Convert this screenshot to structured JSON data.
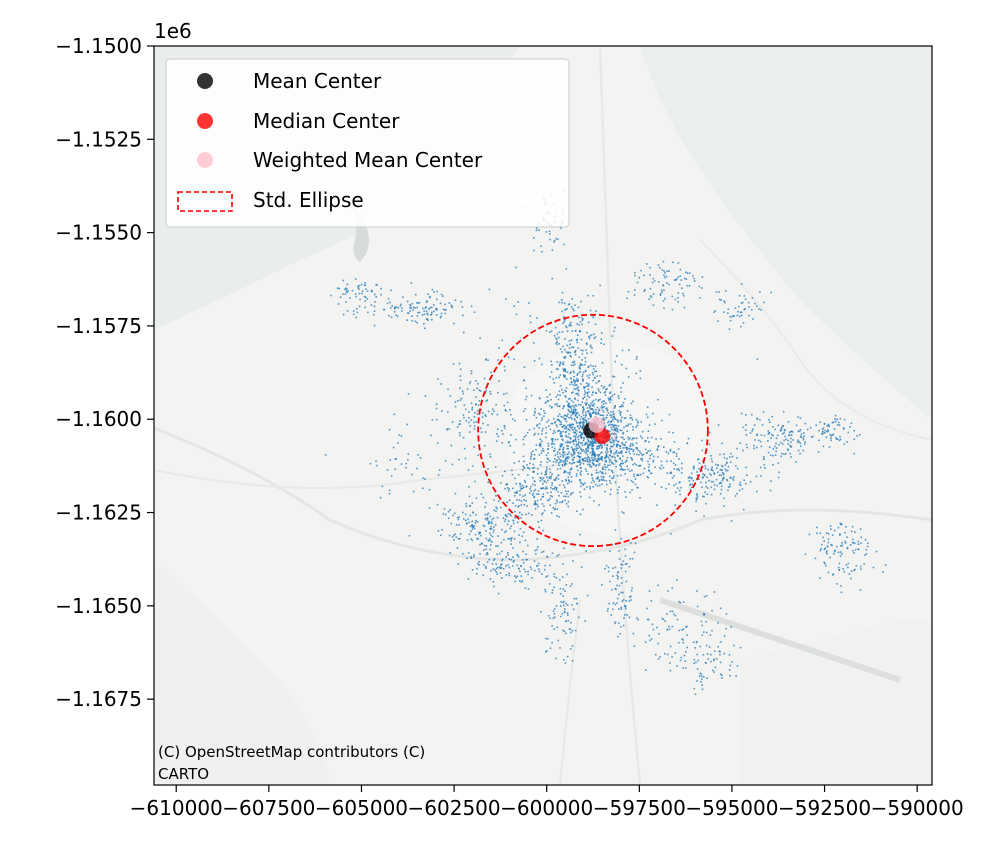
{
  "chart_data": {
    "type": "scatter",
    "scale_label": "1e6",
    "xlim": [
      -610600,
      -589600
    ],
    "ylim": [
      -1169800,
      -1150000
    ],
    "x_ticks": [
      -610000,
      -607500,
      -605000,
      -602500,
      -600000,
      -597500,
      -595000,
      -592500,
      -590000
    ],
    "x_tick_labels": [
      "−610000",
      "−607500",
      "−605000",
      "−602500",
      "−600000",
      "−597500",
      "−595000",
      "−592500",
      "−590000"
    ],
    "y_ticks": [
      -1150000,
      -1152500,
      -1155000,
      -1157500,
      -1160000,
      -1162500,
      -1165000,
      -1167500
    ],
    "y_tick_labels": [
      "−1.1500",
      "−1.1525",
      "−1.1550",
      "−1.1575",
      "−1.1600",
      "−1.1625",
      "−1.1650",
      "−1.1675"
    ],
    "grid": false,
    "legend_position": "top-left",
    "legend": [
      {
        "label": "Mean Center",
        "kind": "marker",
        "color": "#000000"
      },
      {
        "label": "Median Center",
        "kind": "marker",
        "color": "#ff0000"
      },
      {
        "label": "Weighted Mean Center",
        "kind": "marker",
        "color": "#ffc0cb"
      },
      {
        "label": "Std. Ellipse",
        "kind": "dashed-rect",
        "color": "#ff0000"
      }
    ],
    "mean_center": {
      "x": -598800,
      "y": -1160300
    },
    "median_center": {
      "x": -598500,
      "y": -1160450
    },
    "weighted_mean_center": {
      "x": -598650,
      "y": -1160150
    },
    "std_ellipse": {
      "cx": -598750,
      "cy": -1160300,
      "rx": 3100,
      "ry": 3100
    },
    "point_color": "#1f77b4",
    "point_clusters": [
      {
        "x": -598900,
        "y": -1160300,
        "sx": 1300,
        "sy": 1400,
        "n": 900
      },
      {
        "x": -598200,
        "y": -1160900,
        "sx": 2300,
        "sy": 1000,
        "n": 350
      },
      {
        "x": -599200,
        "y": -1158200,
        "sx": 700,
        "sy": 1600,
        "n": 200
      },
      {
        "x": -600200,
        "y": -1161900,
        "sx": 1000,
        "sy": 900,
        "n": 200
      },
      {
        "x": -601700,
        "y": -1162800,
        "sx": 1100,
        "sy": 700,
        "n": 160
      },
      {
        "x": -600900,
        "y": -1163900,
        "sx": 1200,
        "sy": 600,
        "n": 130
      },
      {
        "x": -599600,
        "y": -1165200,
        "sx": 500,
        "sy": 1200,
        "n": 80
      },
      {
        "x": -598000,
        "y": -1164500,
        "sx": 400,
        "sy": 1300,
        "n": 80
      },
      {
        "x": -596500,
        "y": -1165500,
        "sx": 1300,
        "sy": 1200,
        "n": 90
      },
      {
        "x": -595400,
        "y": -1161500,
        "sx": 1300,
        "sy": 800,
        "n": 170
      },
      {
        "x": -593800,
        "y": -1160500,
        "sx": 900,
        "sy": 700,
        "n": 120
      },
      {
        "x": -592000,
        "y": -1163500,
        "sx": 900,
        "sy": 900,
        "n": 110
      },
      {
        "x": -592400,
        "y": -1160300,
        "sx": 700,
        "sy": 500,
        "n": 70
      },
      {
        "x": -603400,
        "y": -1157000,
        "sx": 1200,
        "sy": 500,
        "n": 110
      },
      {
        "x": -605100,
        "y": -1156700,
        "sx": 700,
        "sy": 500,
        "n": 60
      },
      {
        "x": -602000,
        "y": -1159700,
        "sx": 900,
        "sy": 900,
        "n": 80
      },
      {
        "x": -599900,
        "y": -1154700,
        "sx": 500,
        "sy": 900,
        "n": 50
      },
      {
        "x": -596800,
        "y": -1156300,
        "sx": 900,
        "sy": 700,
        "n": 80
      },
      {
        "x": -594700,
        "y": -1157000,
        "sx": 800,
        "sy": 500,
        "n": 50
      },
      {
        "x": -595600,
        "y": -1166500,
        "sx": 900,
        "sy": 1000,
        "n": 60
      },
      {
        "x": -604000,
        "y": -1161000,
        "sx": 700,
        "sy": 800,
        "n": 30
      },
      {
        "x": -600000,
        "y": -1160000,
        "sx": 4000,
        "sy": 3500,
        "n": 300
      }
    ]
  },
  "attribution": {
    "line1": "(C) OpenStreetMap contributors (C)",
    "line2": "CARTO"
  }
}
